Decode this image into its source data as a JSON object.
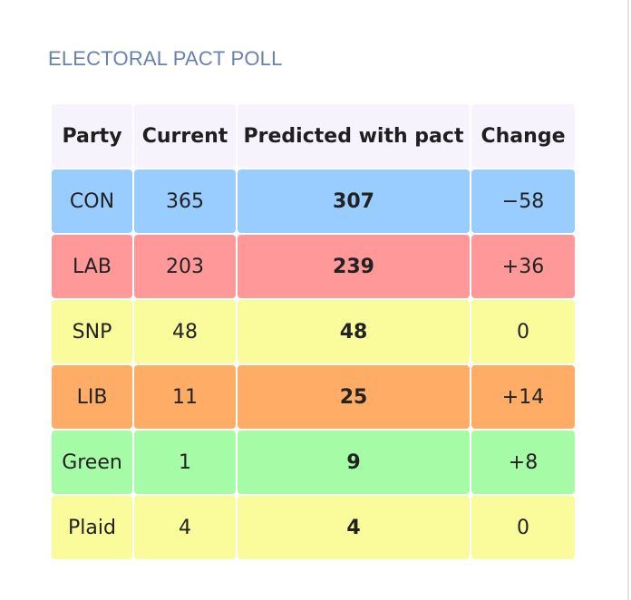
{
  "title": "ELECTORAL PACT POLL",
  "table": {
    "headers": [
      "Party",
      "Current",
      "Predicted with pact",
      "Change"
    ],
    "rows": [
      {
        "party": "CON",
        "current": "365",
        "predicted": "307",
        "change": "−58",
        "color": "#99ccff"
      },
      {
        "party": "LAB",
        "current": "203",
        "predicted": "239",
        "change": "+36",
        "color": "#ff9999"
      },
      {
        "party": "SNP",
        "current": "48",
        "predicted": "48",
        "change": "0",
        "color": "#fafb9b"
      },
      {
        "party": "LIB",
        "current": "11",
        "predicted": "25",
        "change": "+14",
        "color": "#ffad66"
      },
      {
        "party": "Green",
        "current": "1",
        "predicted": "9",
        "change": "+8",
        "color": "#a6fba6"
      },
      {
        "party": "Plaid",
        "current": "4",
        "predicted": "4",
        "change": "0",
        "color": "#fafb9b"
      }
    ]
  }
}
